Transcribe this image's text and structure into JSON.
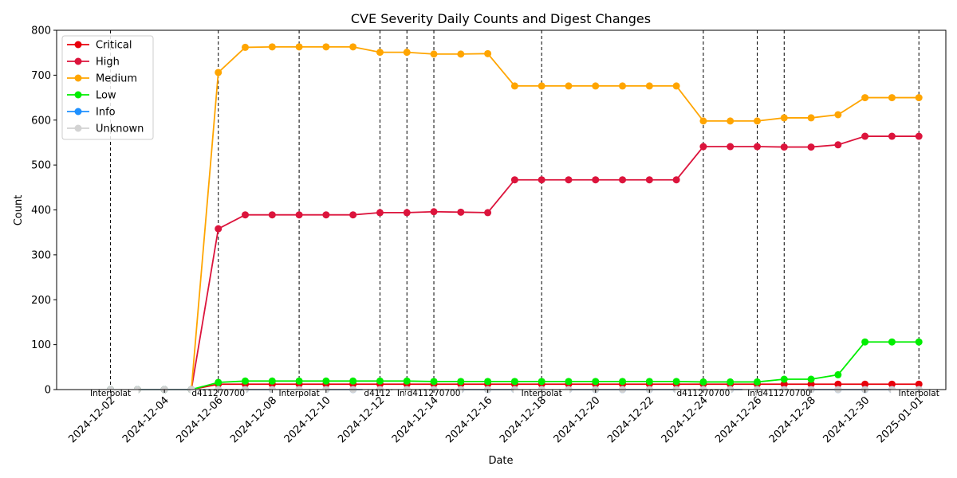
{
  "chart_data": {
    "type": "line",
    "title": "CVE Severity Daily Counts and Digest Changes",
    "xlabel": "Date",
    "ylabel": "Count",
    "ylim": [
      0,
      800
    ],
    "yticks": [
      0,
      100,
      200,
      300,
      400,
      500,
      600,
      700,
      800
    ],
    "xlim": [
      "2024-11-30",
      "2025-01-02"
    ],
    "xticks": [
      "2024-12-02",
      "2024-12-04",
      "2024-12-06",
      "2024-12-08",
      "2024-12-10",
      "2024-12-12",
      "2024-12-14",
      "2024-12-16",
      "2024-12-18",
      "2024-12-20",
      "2024-12-22",
      "2024-12-24",
      "2024-12-26",
      "2024-12-28",
      "2024-12-30",
      "2025-01-01"
    ],
    "grid": false,
    "legend_position": "top-left",
    "dates": [
      "2024-12-02",
      "2024-12-03",
      "2024-12-04",
      "2024-12-05",
      "2024-12-06",
      "2024-12-07",
      "2024-12-08",
      "2024-12-09",
      "2024-12-10",
      "2024-12-11",
      "2024-12-12",
      "2024-12-13",
      "2024-12-14",
      "2024-12-15",
      "2024-12-16",
      "2024-12-17",
      "2024-12-18",
      "2024-12-19",
      "2024-12-20",
      "2024-12-21",
      "2024-12-22",
      "2024-12-23",
      "2024-12-24",
      "2024-12-25",
      "2024-12-26",
      "2024-12-27",
      "2024-12-28",
      "2024-12-29",
      "2024-12-30",
      "2024-12-31",
      "2025-01-01"
    ],
    "series": [
      {
        "name": "Critical",
        "color": "#e8000b",
        "values": [
          0,
          0,
          0,
          0,
          12,
          12,
          12,
          12,
          12,
          12,
          12,
          12,
          12,
          12,
          12,
          12,
          12,
          12,
          12,
          12,
          12,
          12,
          12,
          12,
          12,
          12,
          12,
          12,
          12,
          12,
          12
        ]
      },
      {
        "name": "High",
        "color": "#dc143c",
        "values": [
          0,
          0,
          0,
          0,
          358,
          389,
          389,
          389,
          389,
          389,
          394,
          394,
          396,
          395,
          394,
          467,
          467,
          467,
          467,
          467,
          467,
          467,
          541,
          541,
          541,
          540,
          540,
          545,
          564,
          564,
          564
        ]
      },
      {
        "name": "Medium",
        "color": "#ffa500",
        "values": [
          0,
          0,
          0,
          0,
          706,
          762,
          763,
          763,
          763,
          763,
          751,
          751,
          747,
          747,
          748,
          676,
          676,
          676,
          676,
          676,
          676,
          676,
          598,
          598,
          598,
          605,
          605,
          612,
          650,
          650,
          650
        ]
      },
      {
        "name": "Low",
        "color": "#00ee00",
        "values": [
          0,
          0,
          0,
          0,
          16,
          19,
          19,
          19,
          19,
          19,
          19,
          19,
          18,
          18,
          18,
          18,
          18,
          18,
          18,
          18,
          18,
          18,
          17,
          17,
          17,
          23,
          23,
          33,
          106,
          106,
          106
        ]
      },
      {
        "name": "Info",
        "color": "#1e90ff",
        "values": [
          0,
          0,
          0,
          0,
          0,
          0,
          0,
          0,
          0,
          0,
          0,
          0,
          0,
          0,
          0,
          0,
          0,
          0,
          0,
          0,
          0,
          0,
          0,
          0,
          0,
          0,
          0,
          0,
          0,
          0,
          0
        ]
      },
      {
        "name": "Unknown",
        "color": "#d3d3d3",
        "values": [
          0,
          0,
          0,
          0,
          0,
          0,
          0,
          0,
          0,
          0,
          0,
          0,
          0,
          0,
          0,
          0,
          0,
          0,
          0,
          0,
          0,
          0,
          0,
          0,
          0,
          0,
          0,
          0,
          0,
          0,
          0
        ]
      }
    ],
    "digest_changes": [
      {
        "date": "2024-12-02",
        "label": "Interpolat"
      },
      {
        "date": "2024-12-06",
        "label": "d411270700"
      },
      {
        "date": "2024-12-09",
        "label": "Interpolat"
      },
      {
        "date": "2024-12-12",
        "label": "d41127"
      },
      {
        "date": "2024-12-13",
        "label": "Inter"
      },
      {
        "date": "2024-12-14",
        "label": "d411270700"
      },
      {
        "date": "2024-12-18",
        "label": "Interpolat"
      },
      {
        "date": "2024-12-24",
        "label": "d411270700"
      },
      {
        "date": "2024-12-26",
        "label": "Inter"
      },
      {
        "date": "2024-12-27",
        "label": "d411270700"
      },
      {
        "date": "2025-01-01",
        "label": "Interpolat"
      }
    ]
  }
}
